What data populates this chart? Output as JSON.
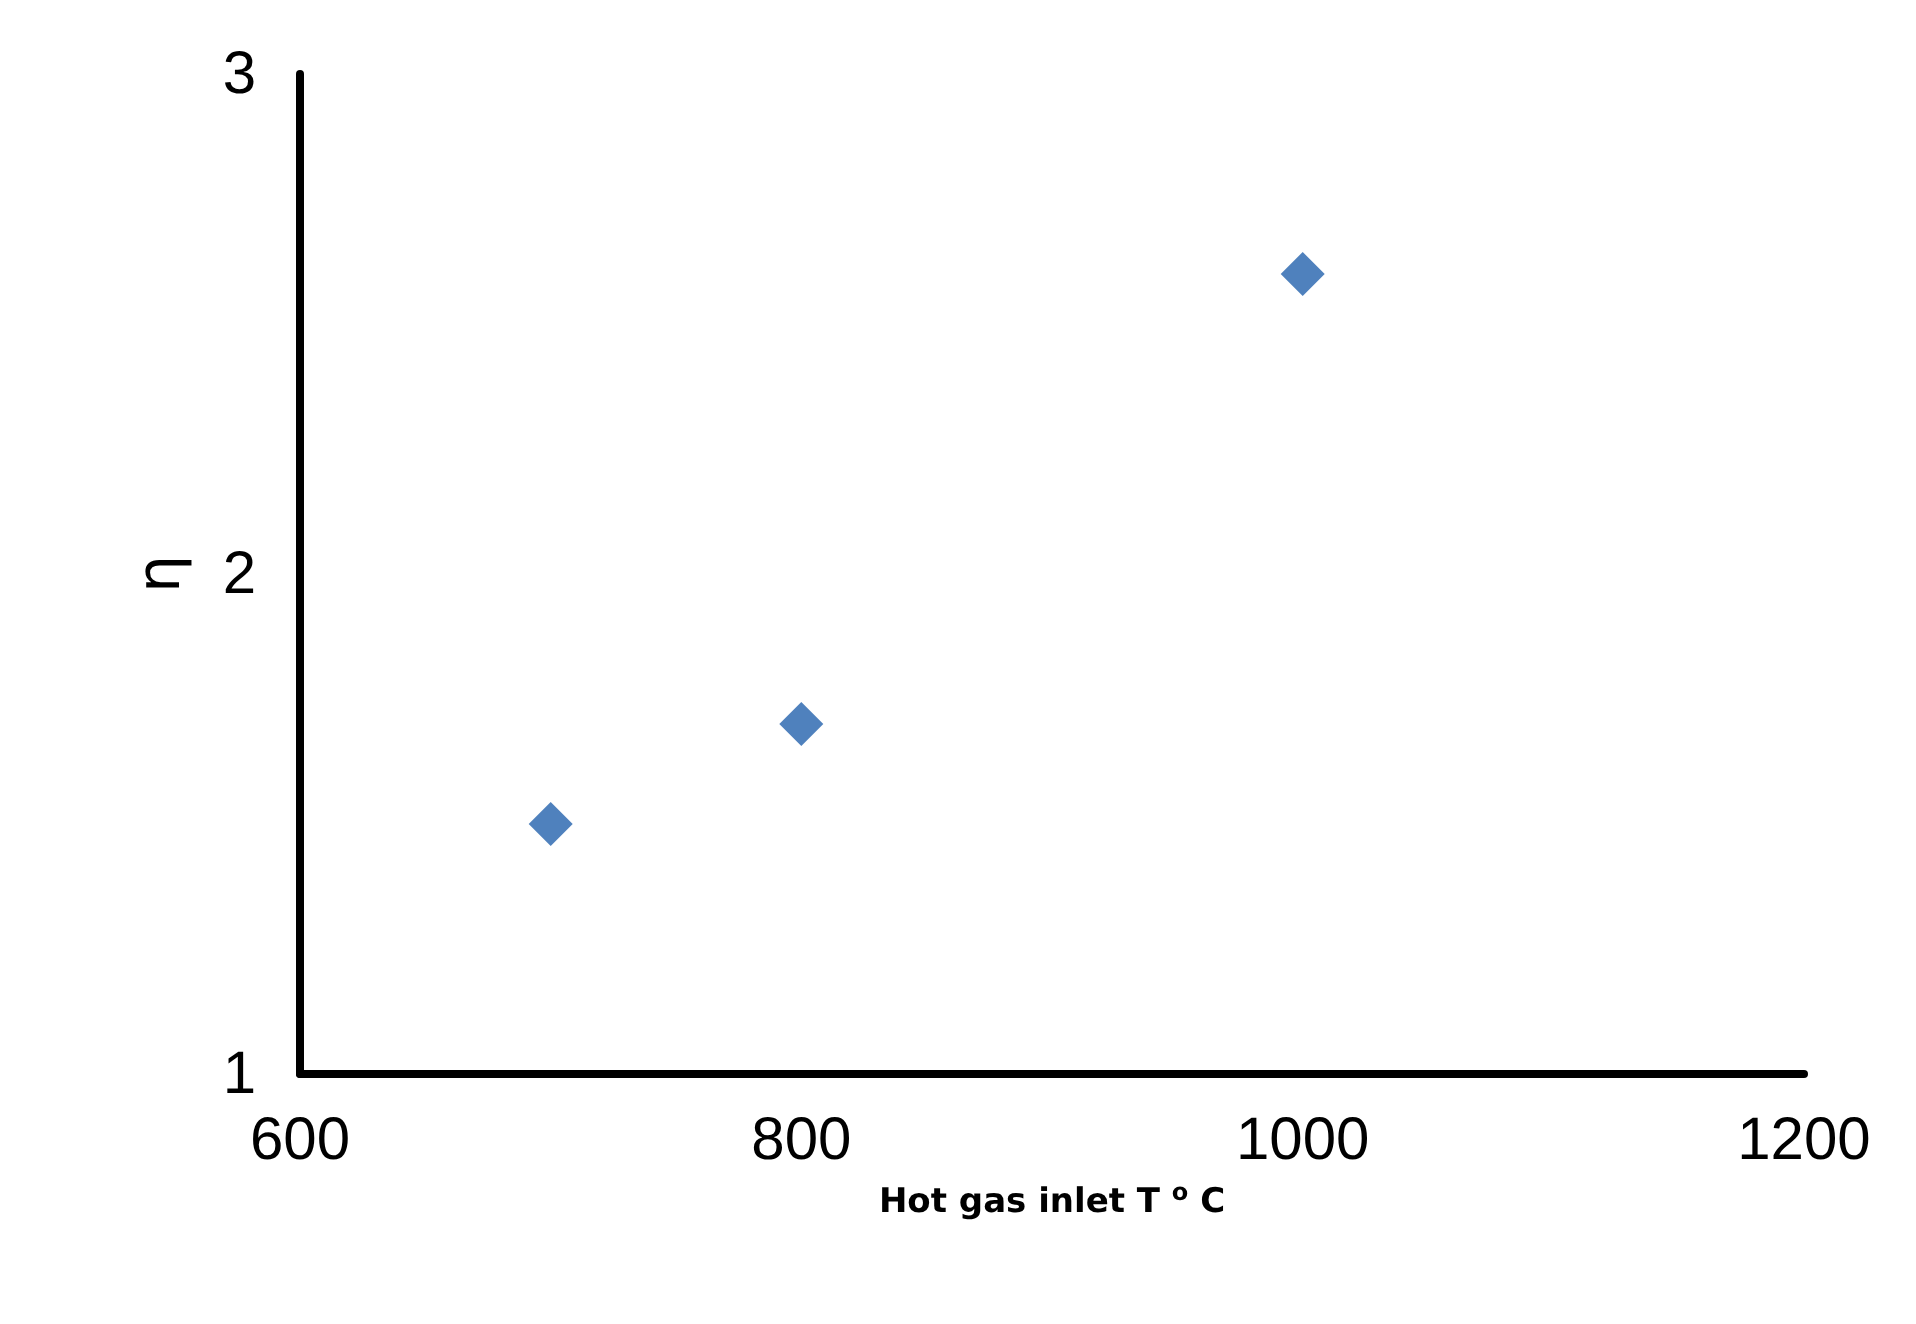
{
  "chart_data": {
    "type": "scatter",
    "xlabel": "Hot gas inlet T $^{o}$ C",
    "ylabel": "η",
    "x": [
      700,
      800,
      1000
    ],
    "series": [
      {
        "color": "#4f81bd",
        "values": [
          1.5,
          1.7,
          2.6
        ]
      }
    ],
    "xlim": [
      600,
      1200
    ],
    "xticks": [
      600,
      800,
      1000,
      1200
    ],
    "ylim": [
      1,
      3
    ],
    "yticks": [
      1,
      2,
      3
    ],
    "grid": false,
    "marker": "diamond"
  }
}
